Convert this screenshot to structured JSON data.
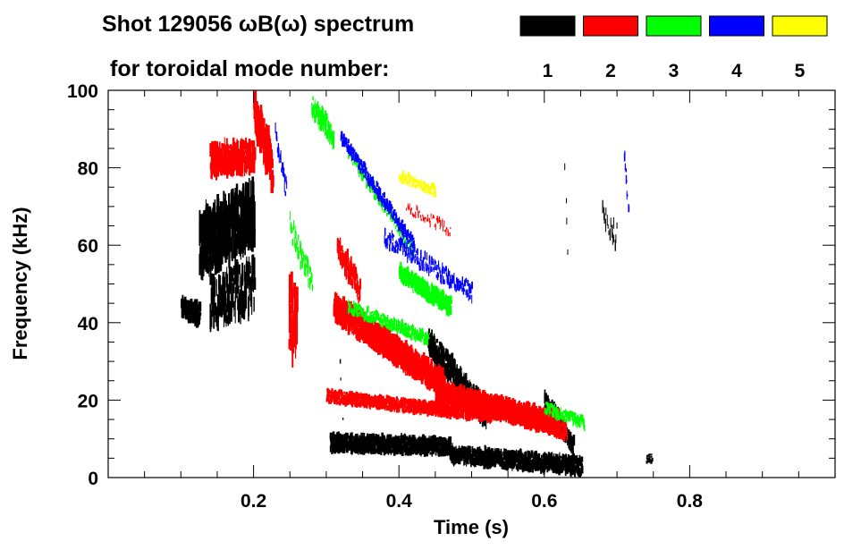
{
  "chart_data": {
    "type": "heatmap",
    "title_line1": "Shot 129056 ωB(ω) spectrum",
    "title_line2": "for toroidal mode number:",
    "xlabel": "Time (s)",
    "ylabel": "Frequency (kHz)",
    "xlim": [
      0.0,
      1.0
    ],
    "ylim": [
      0,
      100
    ],
    "x_ticks": [
      0.2,
      0.4,
      0.6,
      0.8
    ],
    "x_tick_labels": [
      "0.2",
      "0.4",
      "0.6",
      "0.8"
    ],
    "x_minor_step": 0.05,
    "y_ticks": [
      0,
      20,
      40,
      60,
      80,
      100
    ],
    "y_tick_labels": [
      "0",
      "20",
      "40",
      "60",
      "80",
      "100"
    ],
    "y_minor_step": 5,
    "legend": [
      {
        "label": "1",
        "color": "#000000"
      },
      {
        "label": "2",
        "color": "#ff0000"
      },
      {
        "label": "3",
        "color": "#00ff00"
      },
      {
        "label": "4",
        "color": "#0000ff"
      },
      {
        "label": "5",
        "color": "#ffff00"
      }
    ],
    "series": [
      {
        "name": "1",
        "color": "#000000",
        "strokes": [
          {
            "t0": 0.1,
            "t1": 0.125,
            "f0": 44,
            "f1": 42,
            "spread": 5,
            "density": 5,
            "width": 0.003
          },
          {
            "t0": 0.125,
            "t1": 0.2,
            "f0": 60,
            "f1": 68,
            "spread": 14,
            "density": 6,
            "width": 0.0025
          },
          {
            "t0": 0.14,
            "t1": 0.2,
            "f0": 45,
            "f1": 50,
            "spread": 12,
            "density": 3,
            "width": 0.002
          },
          {
            "t0": 0.305,
            "t1": 0.47,
            "f0": 9,
            "f1": 8,
            "spread": 4,
            "density": 5,
            "width": 0.0028
          },
          {
            "t0": 0.44,
            "t1": 0.52,
            "f0": 35,
            "f1": 16,
            "spread": 6,
            "density": 5,
            "width": 0.0025
          },
          {
            "t0": 0.47,
            "t1": 0.65,
            "f0": 6,
            "f1": 3,
            "spread": 4,
            "density": 5,
            "width": 0.0025
          },
          {
            "t0": 0.6,
            "t1": 0.64,
            "f0": 20,
            "f1": 8,
            "spread": 5,
            "density": 4,
            "width": 0.0025
          },
          {
            "t0": 0.68,
            "t1": 0.7,
            "f0": 68,
            "f1": 62,
            "spread": 6,
            "density": 1,
            "width": 0.0012
          },
          {
            "t0": 0.74,
            "t1": 0.748,
            "f0": 5,
            "f1": 5,
            "spread": 2,
            "density": 3,
            "width": 0.002
          },
          {
            "t0": 0.628,
            "t1": 0.632,
            "f0": 80,
            "f1": 55,
            "spread": 3,
            "density": 1,
            "width": 0.001
          },
          {
            "t0": 0.318,
            "t1": 0.322,
            "f0": 30,
            "f1": 14,
            "spread": 2,
            "density": 1,
            "width": 0.0012
          }
        ]
      },
      {
        "name": "2",
        "color": "#ff0000",
        "strokes": [
          {
            "t0": 0.14,
            "t1": 0.2,
            "f0": 82,
            "f1": 83,
            "spread": 7,
            "density": 6,
            "width": 0.0025
          },
          {
            "t0": 0.2,
            "t1": 0.225,
            "f0": 95,
            "f1": 80,
            "spread": 10,
            "density": 6,
            "width": 0.003
          },
          {
            "t0": 0.248,
            "t1": 0.258,
            "f0": 42,
            "f1": 40,
            "spread": 16,
            "density": 4,
            "width": 0.0025
          },
          {
            "t0": 0.31,
            "t1": 0.46,
            "f0": 44,
            "f1": 24,
            "spread": 6,
            "density": 6,
            "width": 0.003
          },
          {
            "t0": 0.315,
            "t1": 0.345,
            "f0": 60,
            "f1": 48,
            "spread": 6,
            "density": 4,
            "width": 0.002
          },
          {
            "t0": 0.3,
            "t1": 0.53,
            "f0": 21,
            "f1": 16,
            "spread": 3,
            "density": 5,
            "width": 0.0025
          },
          {
            "t0": 0.45,
            "t1": 0.62,
            "f0": 22,
            "f1": 14,
            "spread": 5,
            "density": 6,
            "width": 0.003
          },
          {
            "t0": 0.5,
            "t1": 0.63,
            "f0": 20,
            "f1": 12,
            "spread": 4,
            "density": 4,
            "width": 0.0025
          },
          {
            "t0": 0.41,
            "t1": 0.47,
            "f0": 70,
            "f1": 64,
            "spread": 3,
            "density": 1,
            "width": 0.0012
          }
        ]
      },
      {
        "name": "3",
        "color": "#00ff00",
        "strokes": [
          {
            "t0": 0.4,
            "t1": 0.47,
            "f0": 53,
            "f1": 44,
            "spread": 4,
            "density": 5,
            "width": 0.0025
          },
          {
            "t0": 0.33,
            "t1": 0.44,
            "f0": 44,
            "f1": 36,
            "spread": 3,
            "density": 3,
            "width": 0.002
          },
          {
            "t0": 0.28,
            "t1": 0.31,
            "f0": 96,
            "f1": 88,
            "spread": 5,
            "density": 3,
            "width": 0.002
          },
          {
            "t0": 0.6,
            "t1": 0.655,
            "f0": 18,
            "f1": 14,
            "spread": 3,
            "density": 3,
            "width": 0.002
          },
          {
            "t0": 0.25,
            "t1": 0.28,
            "f0": 65,
            "f1": 50,
            "spread": 6,
            "density": 2,
            "width": 0.0015
          },
          {
            "t0": 0.33,
            "t1": 0.42,
            "f0": 84,
            "f1": 58,
            "spread": 3,
            "density": 2,
            "width": 0.0015
          }
        ]
      },
      {
        "name": "4",
        "color": "#0000ff",
        "strokes": [
          {
            "t0": 0.32,
            "t1": 0.42,
            "f0": 88,
            "f1": 60,
            "spread": 3,
            "density": 3,
            "width": 0.002
          },
          {
            "t0": 0.71,
            "t1": 0.715,
            "f0": 82,
            "f1": 70,
            "spread": 4,
            "density": 2,
            "width": 0.0015
          },
          {
            "t0": 0.23,
            "t1": 0.245,
            "f0": 88,
            "f1": 74,
            "spread": 5,
            "density": 2,
            "width": 0.0015
          },
          {
            "t0": 0.38,
            "t1": 0.5,
            "f0": 62,
            "f1": 48,
            "spread": 4,
            "density": 2,
            "width": 0.0015
          }
        ]
      },
      {
        "name": "5",
        "color": "#ffff00",
        "strokes": [
          {
            "t0": 0.4,
            "t1": 0.45,
            "f0": 78,
            "f1": 74,
            "spread": 3,
            "density": 2,
            "width": 0.002
          }
        ]
      }
    ]
  }
}
